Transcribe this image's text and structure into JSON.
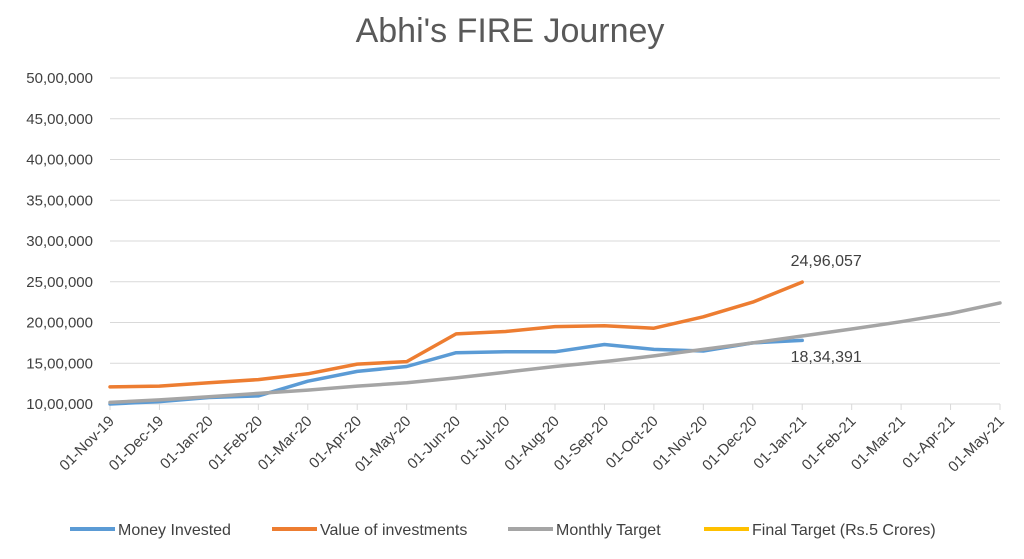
{
  "chart_data": {
    "type": "line",
    "title": "Abhi's FIRE Journey",
    "xlabel": "",
    "ylabel": "",
    "categories": [
      "01-Nov-19",
      "01-Dec-19",
      "01-Jan-20",
      "01-Feb-20",
      "01-Mar-20",
      "01-Apr-20",
      "01-May-20",
      "01-Jun-20",
      "01-Jul-20",
      "01-Aug-20",
      "01-Sep-20",
      "01-Oct-20",
      "01-Nov-20",
      "01-Dec-20",
      "01-Jan-21",
      "01-Feb-21",
      "01-Mar-21",
      "01-Apr-21",
      "01-May-21"
    ],
    "ylim": [
      1000000,
      5000000
    ],
    "yticks": [
      1000000,
      1500000,
      2000000,
      2500000,
      3000000,
      3500000,
      4000000,
      4500000,
      5000000
    ],
    "ytick_labels": [
      "10,00,000",
      "15,00,000",
      "20,00,000",
      "25,00,000",
      "30,00,000",
      "35,00,000",
      "40,00,000",
      "45,00,000",
      "50,00,000"
    ],
    "grid": true,
    "legend_position": "bottom",
    "series": [
      {
        "name": "Money Invested",
        "color": "#5B9BD5",
        "values": [
          1000000,
          1030000,
          1080000,
          1100000,
          1280000,
          1400000,
          1460000,
          1630000,
          1640000,
          1640000,
          1730000,
          1670000,
          1650000,
          1750000,
          1780000,
          null,
          null,
          null,
          null
        ]
      },
      {
        "name": "Value of investments",
        "color": "#ED7D31",
        "values": [
          1210000,
          1220000,
          1260000,
          1300000,
          1370000,
          1490000,
          1520000,
          1860000,
          1890000,
          1950000,
          1960000,
          1930000,
          2070000,
          2250000,
          2496057,
          null,
          null,
          null,
          null
        ]
      },
      {
        "name": "Monthly Target",
        "color": "#A5A5A5",
        "values": [
          1020000,
          1050000,
          1090000,
          1130000,
          1170000,
          1220000,
          1260000,
          1320000,
          1390000,
          1460000,
          1520000,
          1590000,
          1670000,
          1750000,
          1834391,
          1920000,
          2010000,
          2110000,
          2240000
        ]
      },
      {
        "name": "Final Target (Rs.5 Crores)",
        "color": "#FFC000",
        "values": [
          null,
          null,
          null,
          null,
          null,
          null,
          null,
          null,
          null,
          null,
          null,
          null,
          null,
          null,
          null,
          null,
          null,
          null,
          null
        ]
      }
    ],
    "data_labels": [
      {
        "series": 1,
        "index": 14,
        "text": "24,96,057",
        "placement": "above"
      },
      {
        "series": 2,
        "index": 14,
        "text": "18,34,391",
        "placement": "below"
      }
    ]
  }
}
